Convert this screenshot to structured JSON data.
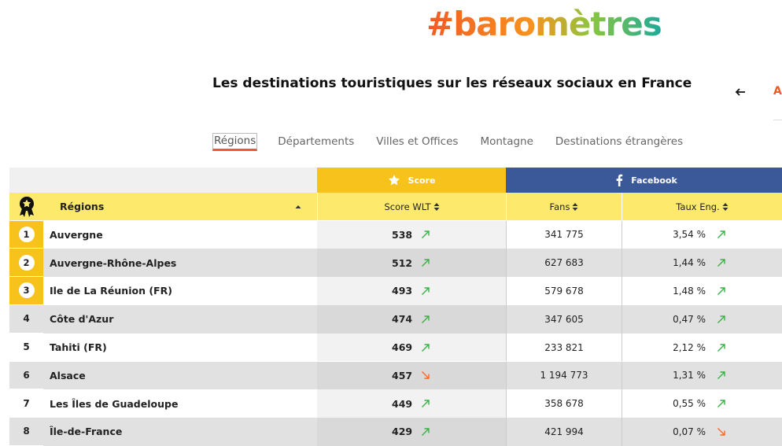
{
  "logo": "#baromètres",
  "header": {
    "title": "Les destinations touristiques sur les réseaux sociaux en France",
    "link": "A"
  },
  "tabs": {
    "items": [
      "Régions",
      "Départements",
      "Villes et Offices",
      "Montagne",
      "Destinations étrangères"
    ],
    "active": 0
  },
  "table": {
    "groups": {
      "score": "Score",
      "facebook": "Facebook"
    },
    "columns": {
      "name": "Régions",
      "score": "Score WLT",
      "fans": "Fans",
      "rate": "Taux Eng."
    },
    "rows": [
      {
        "rank": 1,
        "name": "Auvergne",
        "score": 538,
        "score_trend": "up",
        "fans": "341 775",
        "rate": "3,54 %",
        "rate_trend": "up",
        "highlighted": true
      },
      {
        "rank": 2,
        "name": "Auvergne-Rhône-Alpes",
        "score": 512,
        "score_trend": "up",
        "fans": "627 683",
        "rate": "1,44 %",
        "rate_trend": "up",
        "highlighted": true
      },
      {
        "rank": 3,
        "name": "Ile de La Réunion (FR)",
        "score": 493,
        "score_trend": "up",
        "fans": "579 678",
        "rate": "1,48 %",
        "rate_trend": "up",
        "highlighted": true
      },
      {
        "rank": 4,
        "name": "Côte d'Azur",
        "score": 474,
        "score_trend": "up",
        "fans": "347 605",
        "rate": "0,47 %",
        "rate_trend": "up",
        "highlighted": false
      },
      {
        "rank": 5,
        "name": "Tahiti (FR)",
        "score": 469,
        "score_trend": "up",
        "fans": "233 821",
        "rate": "2,12 %",
        "rate_trend": "up",
        "highlighted": false
      },
      {
        "rank": 6,
        "name": "Alsace",
        "score": 457,
        "score_trend": "down",
        "fans": "1 194 773",
        "rate": "1,31 %",
        "rate_trend": "up",
        "highlighted": false
      },
      {
        "rank": 7,
        "name": "Les Îles de Guadeloupe",
        "score": 449,
        "score_trend": "up",
        "fans": "358 678",
        "rate": "0,55 %",
        "rate_trend": "up",
        "highlighted": false
      },
      {
        "rank": 8,
        "name": "Île-de-France",
        "score": 429,
        "score_trend": "up",
        "fans": "421 994",
        "rate": "0,07 %",
        "rate_trend": "down",
        "highlighted": false
      }
    ]
  }
}
